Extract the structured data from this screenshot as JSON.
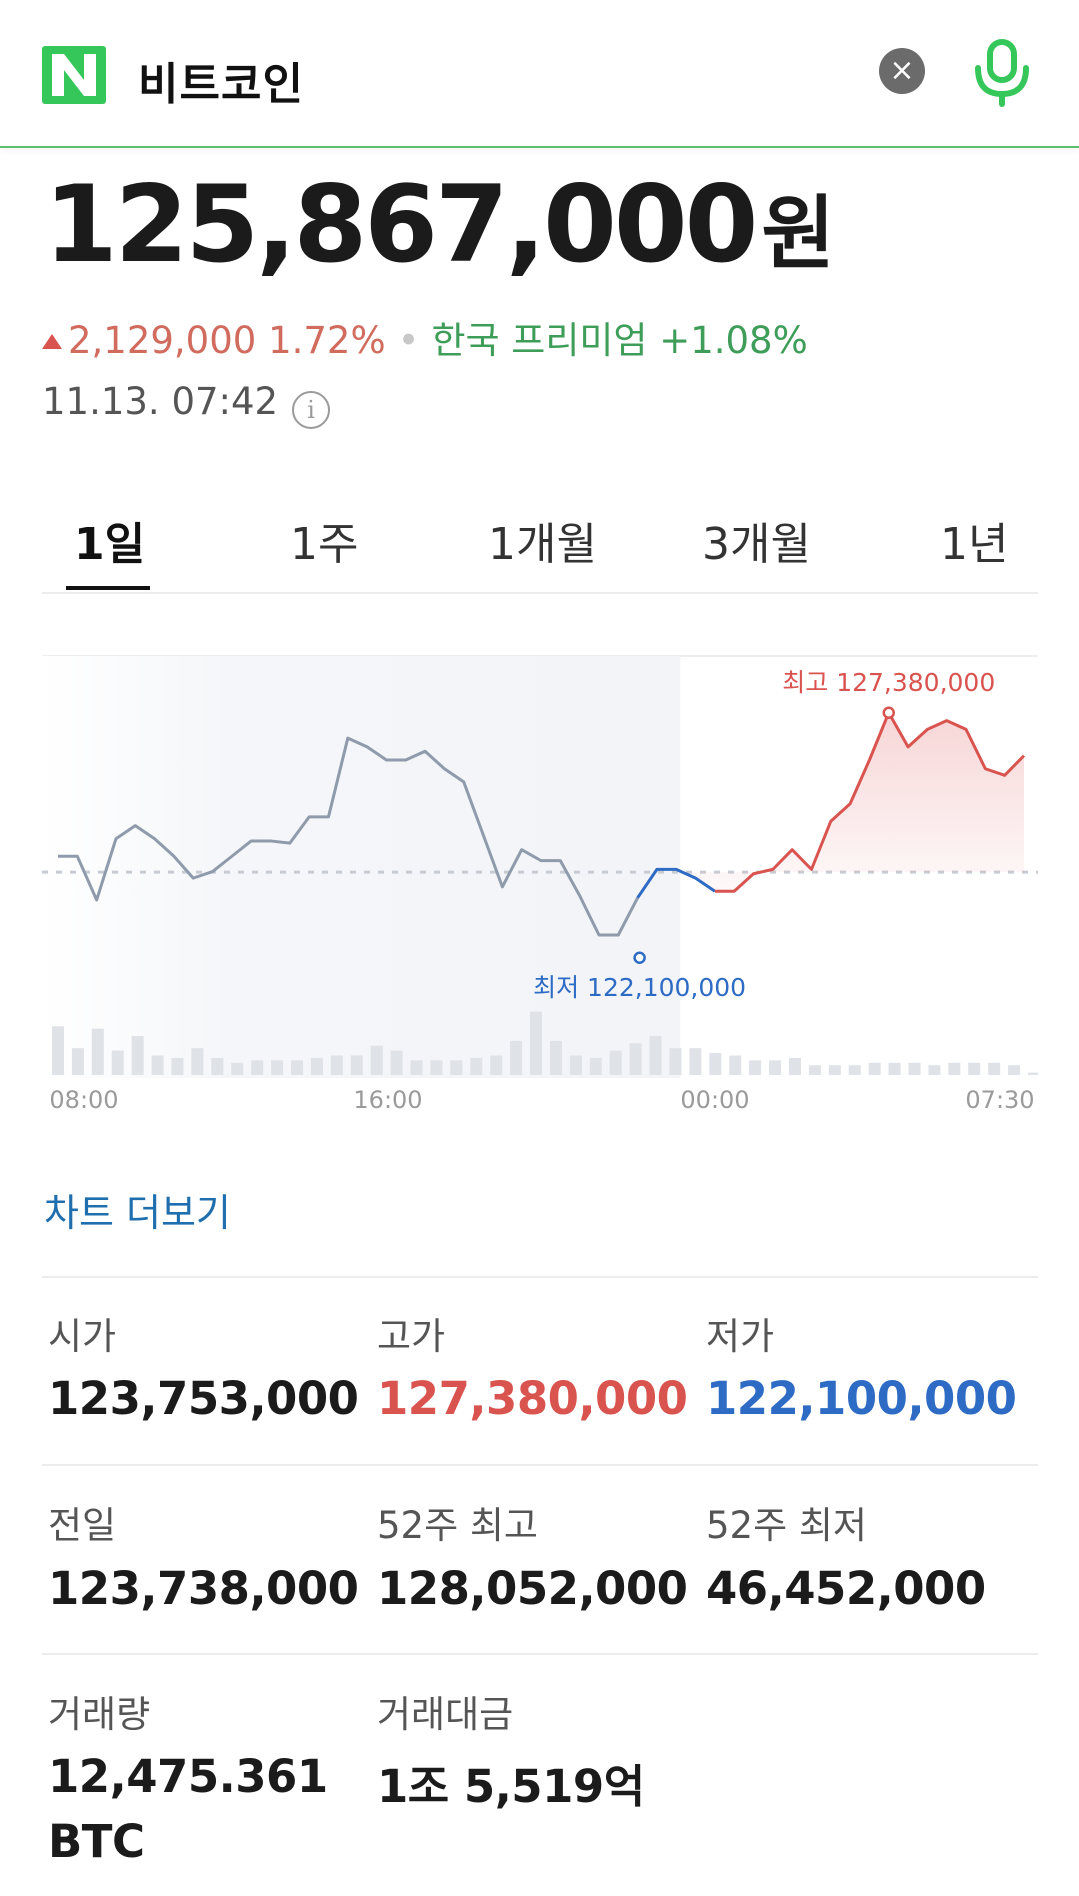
{
  "header": {
    "logo_letter": "N",
    "query": "비트코인",
    "clear_icon": "close-icon",
    "mic_icon": "microphone-icon"
  },
  "quote": {
    "price": "125,867,000",
    "unit": "원",
    "change": "2,129,000 1.72%",
    "separator": "•",
    "premium": "한국 프리미엄 +1.08%",
    "timestamp": "11.13. 07:42",
    "info_icon": "info-icon"
  },
  "tabs": [
    {
      "label": "1일",
      "active": true
    },
    {
      "label": "1주",
      "active": false
    },
    {
      "label": "1개월",
      "active": false
    },
    {
      "label": "3개월",
      "active": false
    },
    {
      "label": "1년",
      "active": false
    }
  ],
  "colors": {
    "up": "#d9534f",
    "down": "#2e6bc4",
    "past_line": "#8f9aab",
    "premium": "#3e9d58",
    "brand_green": "#36c75b"
  },
  "chart_data": {
    "type": "line",
    "x_ticks": [
      "08:00",
      "16:00",
      "00:00",
      "07:30"
    ],
    "baseline": 123738000,
    "high_label": "최고 127,380,000",
    "low_label": "최저 122,100,000",
    "high": 127380000,
    "low": 122100000,
    "series": [
      {
        "values": [
          124100000,
          124100000,
          123100000,
          124500000,
          124800000,
          124500000,
          124100000,
          123600000,
          123750000,
          124100000,
          124450000,
          124450000,
          124400000,
          125000000,
          125000000,
          126800000,
          126600000,
          126300000,
          126300000,
          126500000,
          126100000,
          125800000,
          124600000,
          123400000,
          124250000,
          124000000,
          124000000,
          123200000,
          122300000,
          122300000,
          123150000,
          123800000,
          123800000,
          123600000,
          123300000,
          123300000,
          123700000,
          123800000,
          124250000,
          123800000,
          124900000,
          125300000,
          126300000,
          127380000,
          126600000,
          127000000,
          127200000,
          127000000,
          126100000,
          125950000,
          126400000
        ]
      }
    ],
    "volume": [
      40,
      22,
      38,
      20,
      32,
      16,
      14,
      22,
      14,
      10,
      12,
      12,
      12,
      14,
      16,
      16,
      24,
      20,
      12,
      12,
      12,
      14,
      16,
      28,
      52,
      28,
      16,
      14,
      20,
      26,
      32,
      22,
      22,
      18,
      16,
      12,
      12,
      14,
      8,
      8,
      8,
      10,
      10,
      10,
      8,
      10,
      10,
      10,
      8,
      2
    ]
  },
  "chart_more": "차트 더보기",
  "stats": [
    {
      "label": "시가",
      "value": "123,753,000",
      "tone": "normal"
    },
    {
      "label": "고가",
      "value": "127,380,000",
      "tone": "red"
    },
    {
      "label": "저가",
      "value": "122,100,000",
      "tone": "blue"
    },
    {
      "label": "전일",
      "value": "123,738,000",
      "tone": "normal"
    },
    {
      "label": "52주 최고",
      "value": "128,052,000",
      "tone": "normal"
    },
    {
      "label": "52주 최저",
      "value": "46,452,000",
      "tone": "normal"
    },
    {
      "label": "거래량",
      "value": "12,475.361",
      "value2": "BTC",
      "tone": "normal"
    },
    {
      "label": "거래대금",
      "value": "1조 5,519억",
      "tone": "normal"
    }
  ]
}
